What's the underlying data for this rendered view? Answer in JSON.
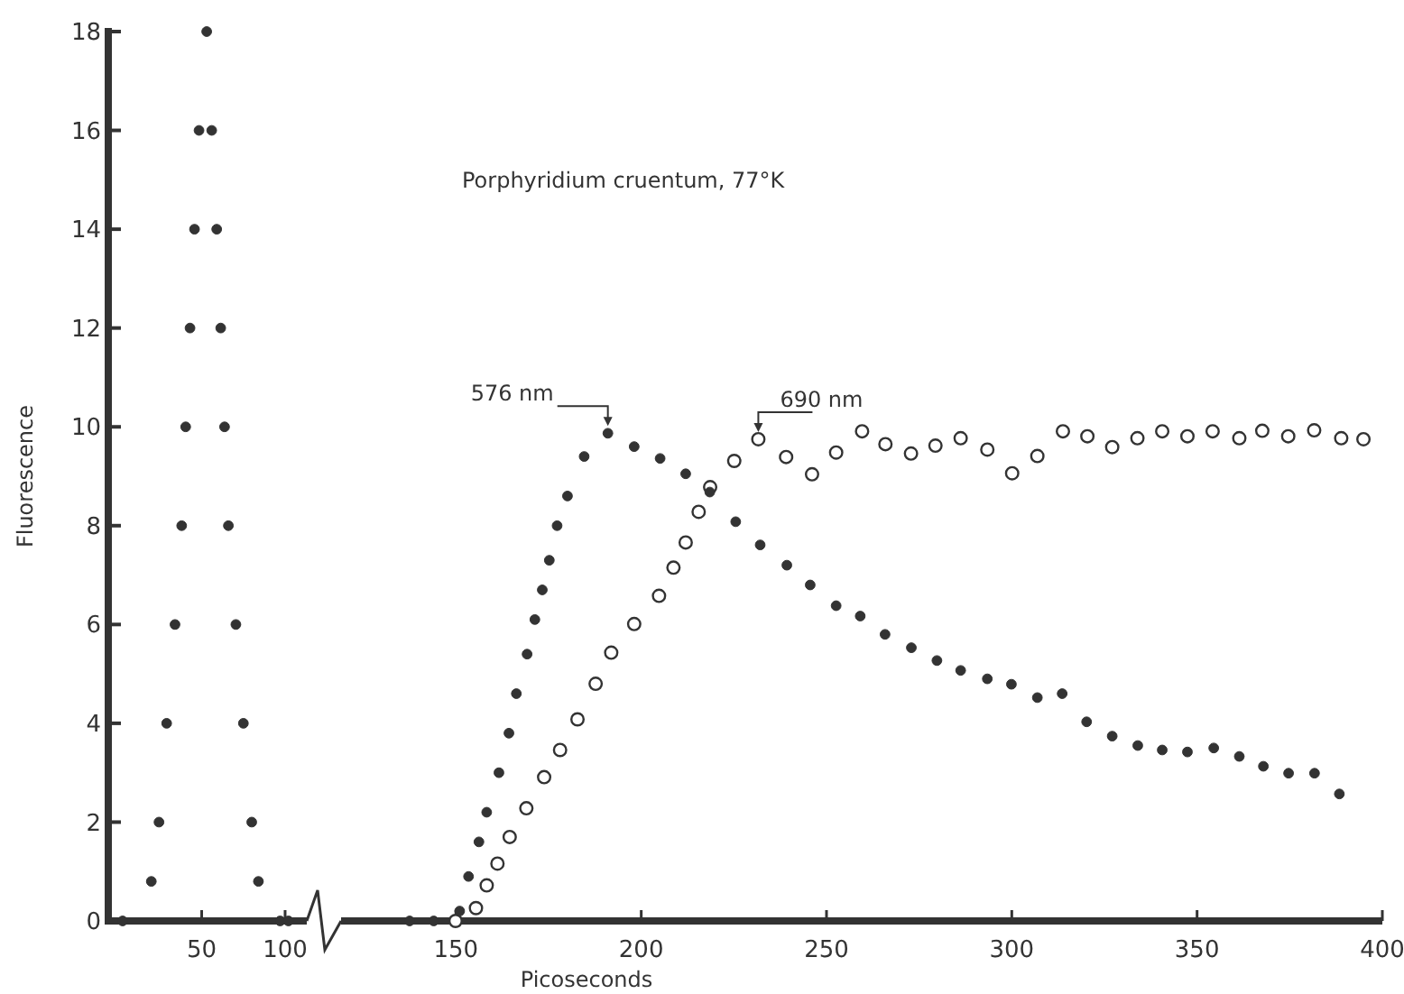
{
  "chart_data": [
    {
      "type": "scatter",
      "ylabel": "Fluorescence",
      "xlim": [
        -6,
        113
      ],
      "xticks": [
        50,
        100
      ],
      "ylim": [
        0,
        18
      ],
      "yticks": [
        0,
        2,
        4,
        6,
        8,
        10,
        12,
        14,
        16,
        18
      ],
      "marker": "circle",
      "series": [
        {
          "color": "#333333",
          "x": [
            2.6,
            19.8,
            24.4,
            29,
            34,
            38,
            40.4,
            43,
            45.7,
            48.4,
            53,
            56,
            59,
            61.4,
            63.7,
            66,
            70.5,
            75,
            80,
            84,
            97,
            102
          ],
          "values": [
            0,
            0.8,
            2,
            4,
            6,
            8,
            10,
            12,
            14,
            16,
            18,
            16,
            14,
            12,
            10,
            8,
            6,
            4,
            2,
            0.8,
            0,
            0
          ]
        }
      ]
    },
    {
      "type": "scatter",
      "title": "Porphyridium cruentum, 77°K",
      "xlabel": "Picoseconds",
      "xlim": [
        119,
        400
      ],
      "xticks": [
        150,
        200,
        250,
        300,
        350,
        400
      ],
      "ylim": [
        0,
        18
      ],
      "tick_labels": "x",
      "marker": "circle",
      "annotations": [
        {
          "text": "576 nm",
          "x": 191,
          "y": 9.87
        },
        {
          "text": "690 nm",
          "x": 231.6,
          "y": 9.75
        }
      ],
      "series": [
        {
          "color": "#333333",
          "x": [
            137.5,
            144,
            151,
            153.4,
            156.2,
            158.3,
            161.6,
            164.3,
            166.3,
            169.2,
            171.3,
            173.3,
            175.2,
            177.3,
            180.1,
            184.6,
            191,
            198.1,
            205.1,
            212,
            218.5,
            225.5,
            232.1,
            239.3,
            245.6,
            252.6,
            259.1,
            265.8,
            272.9,
            279.8,
            286.2,
            293.4,
            299.9,
            306.9,
            313.6,
            320.2,
            327.1,
            334,
            340.6,
            347.4,
            354.5,
            361.4,
            367.9,
            374.7,
            381.7,
            388.4
          ],
          "values": [
            0,
            0,
            0.2,
            0.9,
            1.6,
            2.2,
            3,
            3.8,
            4.6,
            5.4,
            6.1,
            6.7,
            7.3,
            8,
            8.6,
            9.4,
            9.87,
            9.6,
            9.36,
            9.05,
            8.68,
            8.08,
            7.61,
            7.2,
            6.8,
            6.38,
            6.17,
            5.8,
            5.53,
            5.27,
            5.07,
            4.9,
            4.79,
            4.52,
            4.6,
            4.03,
            3.74,
            3.55,
            3.46,
            3.42,
            3.5,
            3.33,
            3.13,
            2.99,
            2.99,
            2.57
          ]
        },
        {
          "color": "#333333",
          "x": [
            149.9,
            155.4,
            158.3,
            161.2,
            164.5,
            169,
            173.8,
            178.1,
            182.8,
            187.7,
            191.9,
            198.1,
            204.8,
            208.7,
            212,
            215.5,
            218.6,
            225.1,
            231.6,
            239.1,
            246.1,
            252.6,
            259.6,
            265.9,
            272.8,
            279.4,
            286.2,
            293.4,
            300.1,
            306.9,
            313.8,
            320.4,
            327.1,
            333.9,
            340.6,
            347.4,
            354.2,
            361.4,
            367.6,
            374.6,
            381.6,
            388.9,
            394.9
          ],
          "values": [
            0,
            0.26,
            0.72,
            1.16,
            1.7,
            2.28,
            2.91,
            3.46,
            4.08,
            4.8,
            5.43,
            6.01,
            6.58,
            7.15,
            7.66,
            8.28,
            8.78,
            9.31,
            9.75,
            9.39,
            9.04,
            9.48,
            9.91,
            9.65,
            9.46,
            9.62,
            9.77,
            9.54,
            9.06,
            9.41,
            9.91,
            9.81,
            9.59,
            9.77,
            9.91,
            9.81,
            9.91,
            9.77,
            9.92,
            9.81,
            9.93,
            9.77,
            9.75
          ]
        }
      ]
    }
  ]
}
